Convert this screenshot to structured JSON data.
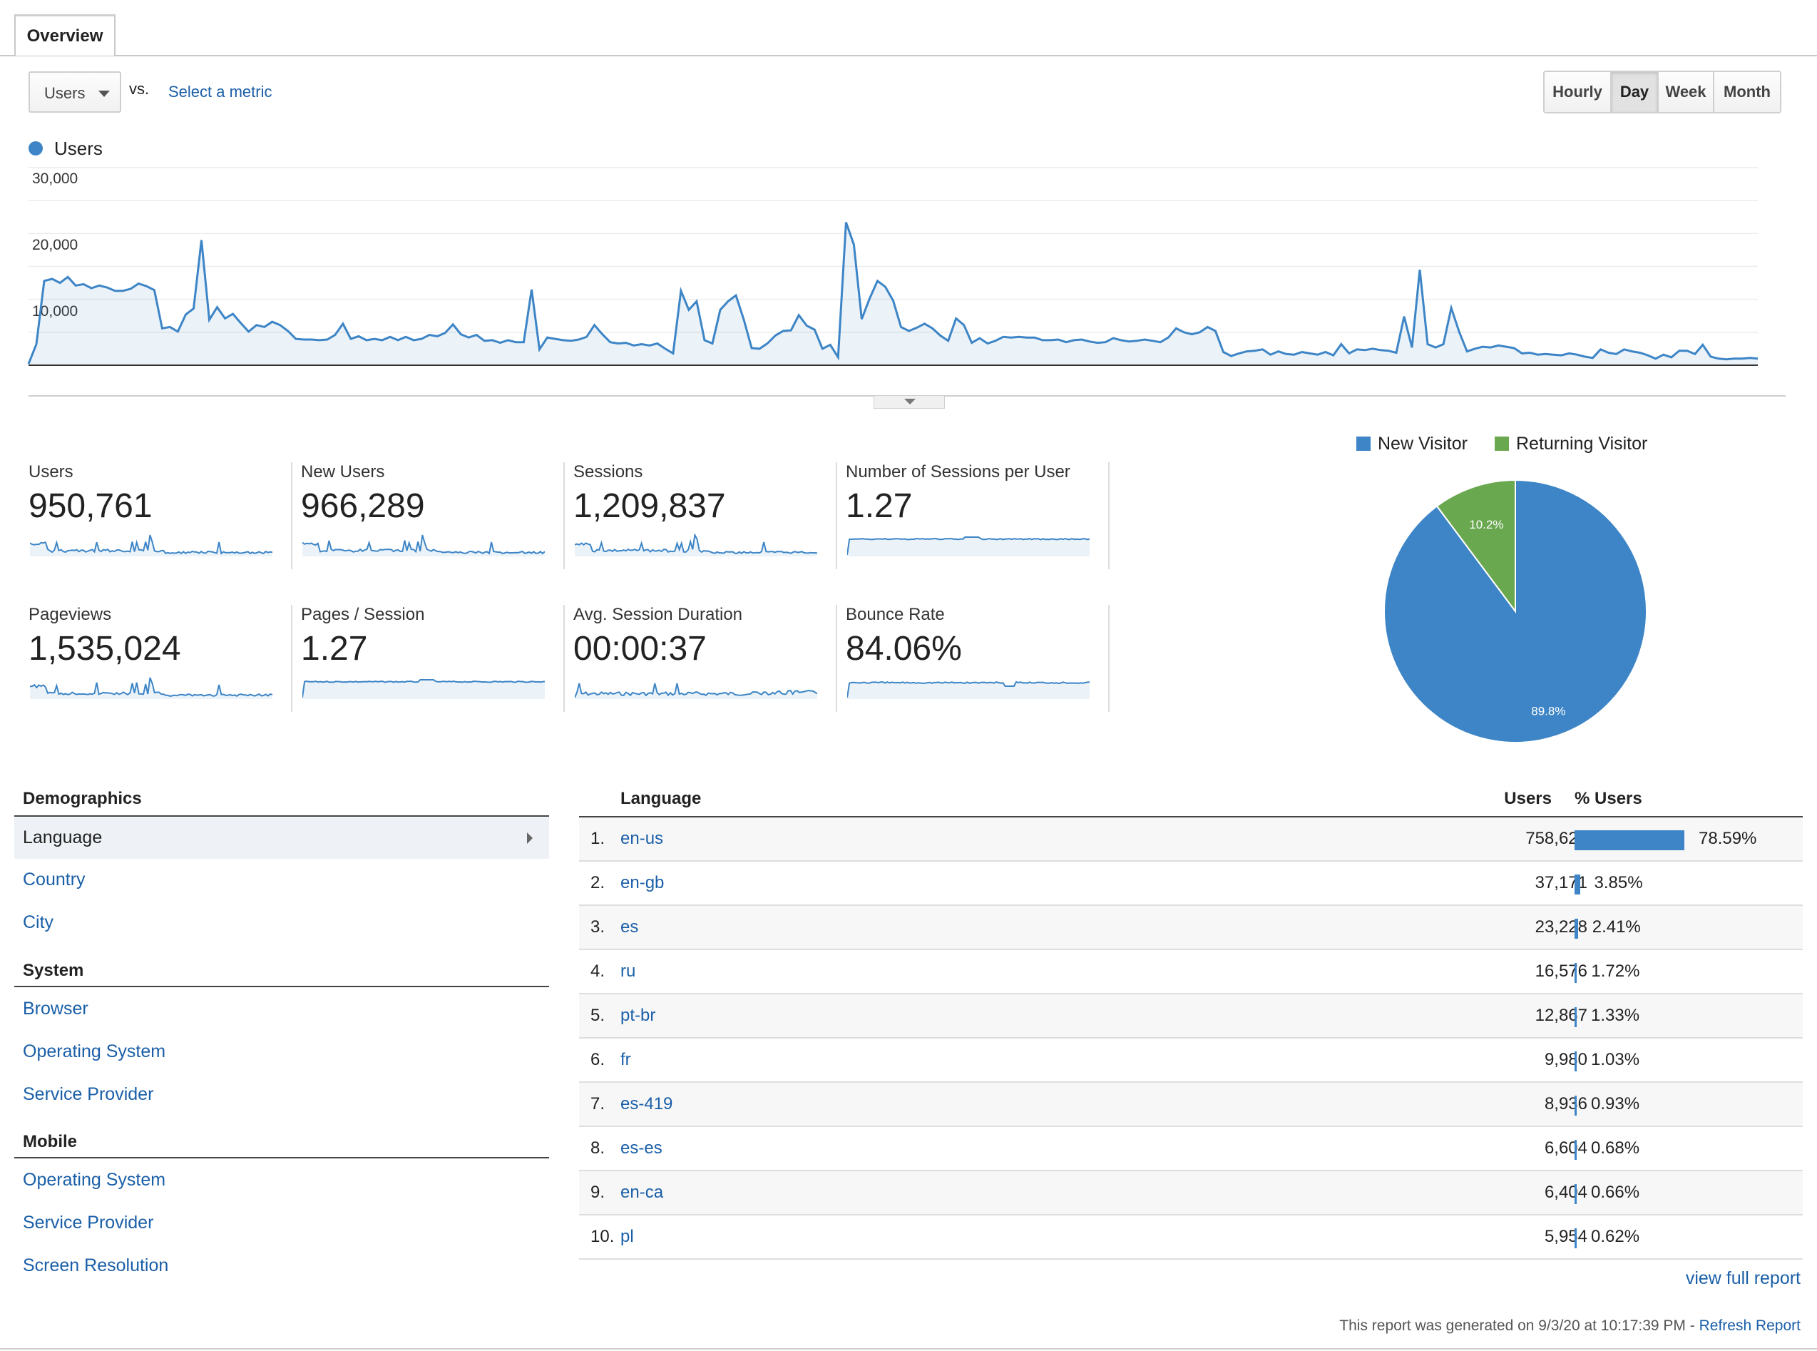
{
  "tab": {
    "label": "Overview"
  },
  "controls": {
    "metric_dropdown": "Users",
    "vs_label": "vs.",
    "select_metric_link": "Select a metric",
    "time_buttons": [
      "Hourly",
      "Day",
      "Week",
      "Month"
    ],
    "active_time_button": "Day"
  },
  "colors": {
    "primary_series": "#3d85c6",
    "returning": "#6aa84f",
    "link": "#1a5fa8"
  },
  "chart_data": {
    "type": "line",
    "series": [
      {
        "name": "Users",
        "values": [
          200,
          3200,
          12800,
          13100,
          12500,
          13400,
          12100,
          12300,
          11700,
          12100,
          11800,
          11300,
          11300,
          11600,
          12400,
          12000,
          11400,
          5600,
          5800,
          5100,
          7700,
          8600,
          19000,
          6900,
          8800,
          7100,
          7800,
          6400,
          5100,
          6100,
          5800,
          6600,
          6100,
          5200,
          4000,
          3900,
          3900,
          3800,
          3900,
          4600,
          6300,
          4000,
          4400,
          3800,
          4000,
          3800,
          4300,
          3800,
          4300,
          3800,
          4000,
          4600,
          4400,
          4900,
          6200,
          4700,
          4200,
          4600,
          3700,
          3800,
          3400,
          3800,
          3500,
          3500,
          11500,
          2400,
          4200,
          4000,
          3800,
          3700,
          3900,
          4300,
          6100,
          4700,
          3500,
          3300,
          3400,
          3000,
          3200,
          3000,
          3300,
          2500,
          1800,
          11300,
          8400,
          9700,
          3800,
          3300,
          8400,
          9700,
          10600,
          6900,
          2600,
          2500,
          3300,
          4500,
          5200,
          5300,
          7600,
          6000,
          5400,
          2500,
          3100,
          1200,
          21700,
          18300,
          7000,
          10100,
          12800,
          11900,
          9800,
          5800,
          5200,
          5700,
          6300,
          5600,
          4500,
          3700,
          7100,
          6100,
          3400,
          4100,
          3300,
          3700,
          4300,
          4200,
          4300,
          4200,
          4200,
          3800,
          3800,
          3900,
          3500,
          3800,
          3900,
          3600,
          3400,
          3500,
          4100,
          3800,
          3600,
          3700,
          3900,
          3700,
          3500,
          4200,
          5600,
          5000,
          4700,
          5000,
          5800,
          5200,
          2000,
          1400,
          1800,
          2100,
          2200,
          2400,
          1600,
          2100,
          1700,
          1600,
          2000,
          1800,
          1600,
          2000,
          1500,
          3200,
          1800,
          2400,
          2300,
          2500,
          2300,
          2200,
          1900,
          7400,
          2700,
          14500,
          3200,
          2700,
          3200,
          8700,
          5100,
          2100,
          2500,
          2800,
          2700,
          3000,
          2800,
          2600,
          1800,
          1900,
          1600,
          1700,
          1600,
          1500,
          1800,
          1600,
          1300,
          1100,
          2400,
          1900,
          1700,
          2400,
          2100,
          1900,
          1500,
          1000,
          1600,
          1200,
          2200,
          2200,
          1700,
          3100,
          1300,
          1000,
          900,
          1000,
          1000,
          1100,
          1000
        ]
      }
    ],
    "ylim": [
      0,
      30000
    ],
    "y_ticks": [
      "30,000",
      "20,000",
      "10,000"
    ],
    "legend_position": "top-left",
    "grid": true
  },
  "metrics": [
    {
      "label": "Users",
      "value": "950,761"
    },
    {
      "label": "New Users",
      "value": "966,289"
    },
    {
      "label": "Sessions",
      "value": "1,209,837"
    },
    {
      "label": "Number of Sessions per User",
      "value": "1.27"
    },
    {
      "label": "Pageviews",
      "value": "1,535,024"
    },
    {
      "label": "Pages / Session",
      "value": "1.27"
    },
    {
      "label": "Avg. Session Duration",
      "value": "00:00:37"
    },
    {
      "label": "Bounce Rate",
      "value": "84.06%"
    }
  ],
  "pie": {
    "type": "pie",
    "legend": [
      "New Visitor",
      "Returning Visitor"
    ],
    "slices": [
      {
        "name": "New Visitor",
        "value": 89.8,
        "label": "89.8%",
        "color": "#3d85c6"
      },
      {
        "name": "Returning Visitor",
        "value": 10.2,
        "label": "10.2%",
        "color": "#6aa84f"
      }
    ]
  },
  "demographics_nav": {
    "sections": [
      {
        "heading": "Demographics",
        "items": [
          "Language",
          "Country",
          "City"
        ]
      },
      {
        "heading": "System",
        "items": [
          "Browser",
          "Operating System",
          "Service Provider"
        ]
      },
      {
        "heading": "Mobile",
        "items": [
          "Operating System",
          "Service Provider",
          "Screen Resolution"
        ]
      }
    ],
    "active_item": "Language"
  },
  "table": {
    "headers": {
      "dimension": "Language",
      "users": "Users",
      "pct": "% Users"
    },
    "rows": [
      {
        "rank": "1.",
        "lang": "en-us",
        "users": "758,621",
        "pct": "78.59%",
        "share": 78.59
      },
      {
        "rank": "2.",
        "lang": "en-gb",
        "users": "37,171",
        "pct": "3.85%",
        "share": 3.85
      },
      {
        "rank": "3.",
        "lang": "es",
        "users": "23,228",
        "pct": "2.41%",
        "share": 2.41
      },
      {
        "rank": "4.",
        "lang": "ru",
        "users": "16,576",
        "pct": "1.72%",
        "share": 1.72
      },
      {
        "rank": "5.",
        "lang": "pt-br",
        "users": "12,867",
        "pct": "1.33%",
        "share": 1.33
      },
      {
        "rank": "6.",
        "lang": "fr",
        "users": "9,980",
        "pct": "1.03%",
        "share": 1.03
      },
      {
        "rank": "7.",
        "lang": "es-419",
        "users": "8,936",
        "pct": "0.93%",
        "share": 0.93
      },
      {
        "rank": "8.",
        "lang": "es-es",
        "users": "6,604",
        "pct": "0.68%",
        "share": 0.68
      },
      {
        "rank": "9.",
        "lang": "en-ca",
        "users": "6,404",
        "pct": "0.66%",
        "share": 0.66
      },
      {
        "rank": "10.",
        "lang": "pl",
        "users": "5,954",
        "pct": "0.62%",
        "share": 0.62
      }
    ],
    "view_full_report": "view full report"
  },
  "footer": {
    "text": "This report was generated on 9/3/20 at 10:17:39 PM -",
    "refresh_link": "Refresh Report"
  }
}
